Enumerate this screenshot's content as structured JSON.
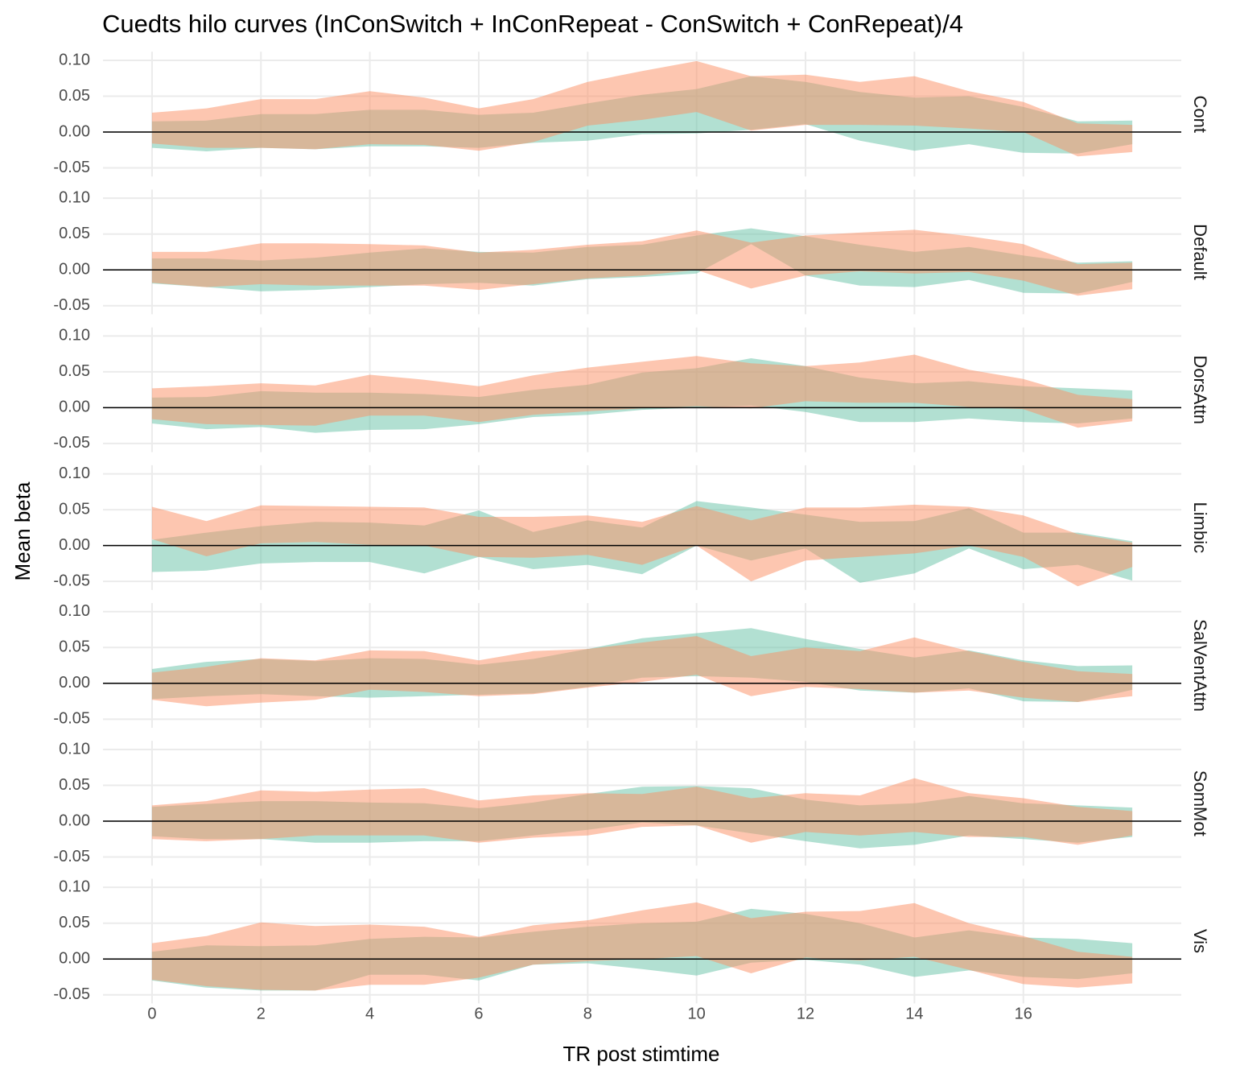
{
  "chart_data": {
    "type": "ribbon",
    "title": "Cuedts hilo curves (InConSwitch + InConRepeat - ConSwitch + ConRepeat)/4",
    "x_label": "TR post stimtime",
    "y_label": "Mean beta",
    "x": [
      0,
      1,
      2,
      3,
      4,
      5,
      6,
      7,
      8,
      9,
      10,
      11,
      12,
      13,
      14,
      15,
      16,
      17,
      18
    ],
    "xlim": [
      -0.9,
      18.9
    ],
    "xticks": [
      0,
      2,
      4,
      6,
      8,
      10,
      12,
      14,
      16
    ],
    "ylim": [
      -0.062,
      0.112
    ],
    "yticks": [
      {
        "value": 0.1,
        "label": "0.10"
      },
      {
        "value": 0.05,
        "label": "0.05"
      },
      {
        "value": 0,
        "label": "0.00"
      },
      {
        "value": -0.05,
        "label": "-0.05"
      }
    ],
    "hline": 0,
    "grid": true,
    "opacity": 0.5,
    "panels": [
      {
        "name": "Cont",
        "series": [
          {
            "color": "#66c2a5",
            "upper": [
              0.015,
              0.016,
              0.025,
              0.025,
              0.031,
              0.031,
              0.024,
              0.027,
              0.04,
              0.052,
              0.06,
              0.078,
              0.07,
              0.056,
              0.048,
              0.05,
              0.035,
              0.015,
              0.016
            ],
            "lower": [
              -0.022,
              -0.027,
              -0.022,
              -0.024,
              -0.02,
              -0.02,
              -0.022,
              -0.015,
              -0.012,
              -0.003,
              -0.002,
              0.003,
              0.011,
              -0.012,
              -0.026,
              -0.017,
              -0.029,
              -0.03,
              -0.017
            ]
          },
          {
            "color": "#fc8d62",
            "upper": [
              0.027,
              0.033,
              0.046,
              0.046,
              0.057,
              0.048,
              0.033,
              0.046,
              0.07,
              0.085,
              0.099,
              0.078,
              0.08,
              0.07,
              0.078,
              0.057,
              0.042,
              0.012,
              0.01
            ],
            "lower": [
              -0.016,
              -0.022,
              -0.022,
              -0.024,
              -0.017,
              -0.018,
              -0.026,
              -0.014,
              0.009,
              0.017,
              0.028,
              0.002,
              0.01,
              0.01,
              0.009,
              0.005,
              0.0,
              -0.034,
              -0.028
            ]
          }
        ]
      },
      {
        "name": "Default",
        "series": [
          {
            "color": "#66c2a5",
            "upper": [
              0.016,
              0.016,
              0.013,
              0.017,
              0.024,
              0.03,
              0.025,
              0.024,
              0.032,
              0.035,
              0.048,
              0.058,
              0.047,
              0.035,
              0.025,
              0.032,
              0.02,
              0.01,
              0.012
            ],
            "lower": [
              -0.019,
              -0.024,
              -0.03,
              -0.028,
              -0.024,
              -0.02,
              -0.018,
              -0.022,
              -0.013,
              -0.01,
              -0.005,
              0.036,
              -0.008,
              -0.022,
              -0.024,
              -0.014,
              -0.032,
              -0.033,
              -0.017
            ]
          },
          {
            "color": "#fc8d62",
            "upper": [
              0.025,
              0.025,
              0.037,
              0.037,
              0.036,
              0.034,
              0.024,
              0.028,
              0.035,
              0.04,
              0.055,
              0.038,
              0.048,
              0.052,
              0.056,
              0.047,
              0.036,
              0.008,
              0.01
            ],
            "lower": [
              -0.018,
              -0.024,
              -0.02,
              -0.022,
              -0.022,
              -0.022,
              -0.028,
              -0.02,
              -0.012,
              -0.008,
              0.0,
              -0.026,
              -0.008,
              -0.002,
              -0.005,
              -0.003,
              -0.015,
              -0.036,
              -0.027
            ]
          }
        ]
      },
      {
        "name": "DorsAttn",
        "series": [
          {
            "color": "#66c2a5",
            "upper": [
              0.014,
              0.015,
              0.023,
              0.021,
              0.021,
              0.019,
              0.015,
              0.025,
              0.032,
              0.049,
              0.055,
              0.069,
              0.058,
              0.042,
              0.034,
              0.037,
              0.03,
              0.027,
              0.024
            ],
            "lower": [
              -0.022,
              -0.03,
              -0.027,
              -0.035,
              -0.031,
              -0.03,
              -0.023,
              -0.013,
              -0.01,
              -0.003,
              0.0,
              0.003,
              -0.006,
              -0.02,
              -0.02,
              -0.015,
              -0.02,
              -0.022,
              -0.015
            ]
          },
          {
            "color": "#fc8d62",
            "upper": [
              0.027,
              0.03,
              0.034,
              0.031,
              0.046,
              0.039,
              0.03,
              0.045,
              0.056,
              0.064,
              0.072,
              0.062,
              0.058,
              0.063,
              0.074,
              0.053,
              0.04,
              0.018,
              0.012
            ],
            "lower": [
              -0.016,
              -0.023,
              -0.024,
              -0.025,
              -0.011,
              -0.011,
              -0.02,
              -0.01,
              -0.005,
              -0.001,
              0.002,
              -0.001,
              0.009,
              0.007,
              0.007,
              0.001,
              -0.002,
              -0.028,
              -0.019
            ]
          }
        ]
      },
      {
        "name": "Limbic",
        "series": [
          {
            "color": "#66c2a5",
            "upper": [
              0.008,
              0.018,
              0.027,
              0.033,
              0.032,
              0.028,
              0.049,
              0.019,
              0.035,
              0.025,
              0.062,
              0.053,
              0.043,
              0.033,
              0.034,
              0.052,
              0.018,
              0.018,
              0.006
            ],
            "lower": [
              -0.037,
              -0.035,
              -0.025,
              -0.023,
              -0.023,
              -0.039,
              -0.016,
              -0.033,
              -0.027,
              -0.04,
              0.0,
              -0.021,
              -0.004,
              -0.052,
              -0.039,
              -0.004,
              -0.033,
              -0.027,
              -0.049
            ]
          },
          {
            "color": "#fc8d62",
            "upper": [
              0.054,
              0.034,
              0.056,
              0.055,
              0.054,
              0.053,
              0.04,
              0.04,
              0.042,
              0.033,
              0.055,
              0.035,
              0.053,
              0.053,
              0.057,
              0.054,
              0.042,
              0.016,
              0.004
            ],
            "lower": [
              0.009,
              -0.015,
              0.003,
              0.005,
              0.001,
              0.0,
              -0.016,
              -0.017,
              -0.013,
              -0.027,
              0.0,
              -0.05,
              -0.021,
              -0.016,
              -0.011,
              0.0,
              -0.016,
              -0.057,
              -0.03
            ]
          }
        ]
      },
      {
        "name": "SalVentAttn",
        "series": [
          {
            "color": "#66c2a5",
            "upper": [
              0.02,
              0.03,
              0.034,
              0.031,
              0.035,
              0.034,
              0.026,
              0.034,
              0.048,
              0.063,
              0.07,
              0.077,
              0.062,
              0.048,
              0.036,
              0.046,
              0.032,
              0.024,
              0.025
            ],
            "lower": [
              -0.022,
              -0.018,
              -0.015,
              -0.018,
              -0.02,
              -0.018,
              -0.016,
              -0.014,
              -0.005,
              0.008,
              0.01,
              0.008,
              0.002,
              -0.01,
              -0.013,
              -0.007,
              -0.025,
              -0.026,
              -0.009
            ]
          },
          {
            "color": "#fc8d62",
            "upper": [
              0.015,
              0.023,
              0.035,
              0.032,
              0.046,
              0.045,
              0.032,
              0.045,
              0.048,
              0.057,
              0.066,
              0.038,
              0.05,
              0.045,
              0.064,
              0.045,
              0.03,
              0.017,
              0.013
            ],
            "lower": [
              -0.023,
              -0.032,
              -0.027,
              -0.023,
              -0.009,
              -0.012,
              -0.018,
              -0.015,
              -0.006,
              0.002,
              0.012,
              -0.018,
              -0.005,
              -0.008,
              -0.013,
              -0.01,
              -0.02,
              -0.026,
              -0.018
            ]
          }
        ]
      },
      {
        "name": "SomMot",
        "series": [
          {
            "color": "#66c2a5",
            "upper": [
              0.02,
              0.024,
              0.028,
              0.028,
              0.026,
              0.025,
              0.018,
              0.026,
              0.038,
              0.048,
              0.049,
              0.046,
              0.03,
              0.022,
              0.025,
              0.035,
              0.025,
              0.022,
              0.019
            ],
            "lower": [
              -0.021,
              -0.025,
              -0.025,
              -0.03,
              -0.03,
              -0.028,
              -0.028,
              -0.02,
              -0.012,
              -0.002,
              -0.006,
              -0.017,
              -0.028,
              -0.038,
              -0.033,
              -0.02,
              -0.025,
              -0.03,
              -0.022
            ]
          },
          {
            "color": "#fc8d62",
            "upper": [
              0.022,
              0.028,
              0.043,
              0.041,
              0.044,
              0.046,
              0.029,
              0.036,
              0.039,
              0.038,
              0.048,
              0.032,
              0.039,
              0.036,
              0.06,
              0.039,
              0.032,
              0.02,
              0.014
            ],
            "lower": [
              -0.025,
              -0.028,
              -0.025,
              -0.02,
              -0.02,
              -0.02,
              -0.03,
              -0.023,
              -0.02,
              -0.008,
              -0.006,
              -0.03,
              -0.015,
              -0.02,
              -0.015,
              -0.022,
              -0.022,
              -0.033,
              -0.02
            ]
          }
        ]
      },
      {
        "name": "Vis",
        "series": [
          {
            "color": "#66c2a5",
            "upper": [
              0.01,
              0.019,
              0.018,
              0.019,
              0.028,
              0.031,
              0.03,
              0.038,
              0.045,
              0.05,
              0.052,
              0.07,
              0.063,
              0.05,
              0.03,
              0.04,
              0.03,
              0.028,
              0.022
            ],
            "lower": [
              -0.03,
              -0.04,
              -0.044,
              -0.044,
              -0.022,
              -0.022,
              -0.03,
              -0.008,
              -0.006,
              -0.014,
              -0.023,
              -0.005,
              -0.001,
              -0.008,
              -0.025,
              -0.016,
              -0.025,
              -0.028,
              -0.02
            ]
          },
          {
            "color": "#fc8d62",
            "upper": [
              0.022,
              0.032,
              0.051,
              0.046,
              0.048,
              0.045,
              0.031,
              0.047,
              0.054,
              0.068,
              0.079,
              0.057,
              0.066,
              0.067,
              0.078,
              0.05,
              0.032,
              0.01,
              0.003
            ],
            "lower": [
              -0.029,
              -0.038,
              -0.043,
              -0.044,
              -0.036,
              -0.036,
              -0.026,
              -0.008,
              -0.003,
              0.0,
              0.004,
              -0.02,
              0.002,
              -0.002,
              0.003,
              -0.015,
              -0.035,
              -0.04,
              -0.034
            ]
          }
        ]
      }
    ]
  }
}
